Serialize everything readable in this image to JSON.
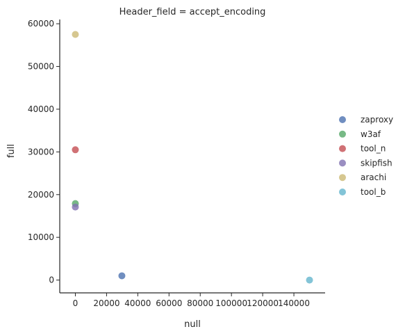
{
  "chart_data": {
    "type": "scatter",
    "title": "Header_field = accept_encoding",
    "xlabel": "null",
    "ylabel": "full",
    "xlim": [
      -10000,
      160000
    ],
    "ylim": [
      -3000,
      61000
    ],
    "xticks": [
      0,
      20000,
      40000,
      60000,
      80000,
      100000,
      120000,
      140000
    ],
    "yticks": [
      0,
      10000,
      20000,
      30000,
      40000,
      50000,
      60000
    ],
    "xtick_labels": [
      "0",
      "20000",
      "40000",
      "60000",
      "80000",
      "100000",
      "120000",
      "140000"
    ],
    "ytick_labels": [
      "0",
      "10000",
      "20000",
      "30000",
      "40000",
      "50000",
      "60000"
    ],
    "grid": false,
    "legend_position": "right",
    "series": [
      {
        "name": "zaproxy",
        "color": "#4c72b0",
        "points": [
          {
            "x": 29800,
            "y": 1000
          }
        ]
      },
      {
        "name": "w3af",
        "color": "#55a868",
        "points": [
          {
            "x": 0,
            "y": 17900
          }
        ]
      },
      {
        "name": "tool_n",
        "color": "#c44e52",
        "points": [
          {
            "x": 0,
            "y": 30500
          }
        ]
      },
      {
        "name": "skipfish",
        "color": "#8172b2",
        "points": [
          {
            "x": 0,
            "y": 17100
          }
        ]
      },
      {
        "name": "arachi",
        "color": "#ccb974",
        "points": [
          {
            "x": 0,
            "y": 57500
          }
        ]
      },
      {
        "name": "tool_b",
        "color": "#64b5cd",
        "points": [
          {
            "x": 150000,
            "y": 0
          }
        ]
      }
    ]
  }
}
